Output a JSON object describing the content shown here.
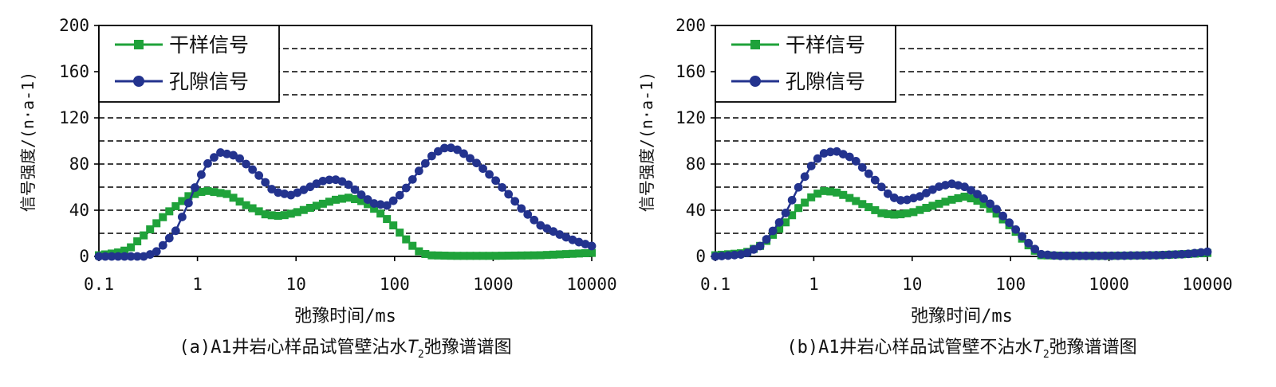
{
  "legend_labels": {
    "dry": "干样信号",
    "pore": "孔隙信号"
  },
  "colors": {
    "dry": "#1fa23a",
    "pore": "#23338e",
    "grid": "#000000"
  },
  "chart_data": [
    {
      "type": "scatter",
      "caption": "(a)A1井岩心样品试管壁沾水T2弛豫谱谱图",
      "caption_parts": {
        "prefix": "(a)A1井岩心样品试管壁沾水",
        "italic": "T",
        "sub": "2",
        "suffix": "弛豫谱谱图"
      },
      "xlabel": "弛豫时间/ms",
      "ylabel": "信号强度/(n·a-1)",
      "xscale": "log",
      "xlim": [
        0.1,
        10000
      ],
      "ylim": [
        0,
        200
      ],
      "xticks": [
        "0.1",
        "1",
        "10",
        "100",
        "1000",
        "10000"
      ],
      "yticks": [
        "0",
        "40",
        "80",
        "120",
        "160",
        "200"
      ],
      "grid": "horizontal dashed every 20",
      "legend_position": "top-left",
      "series": [
        {
          "name": "干样信号",
          "marker": "square",
          "anchors": [
            [
              0.1,
              1
            ],
            [
              0.15,
              3
            ],
            [
              0.2,
              6
            ],
            [
              0.3,
              20
            ],
            [
              0.5,
              38
            ],
            [
              0.8,
              52
            ],
            [
              1.2,
              57
            ],
            [
              2,
              54
            ],
            [
              3,
              45
            ],
            [
              5,
              36
            ],
            [
              7,
              35
            ],
            [
              10,
              38
            ],
            [
              15,
              43
            ],
            [
              25,
              49
            ],
            [
              35,
              51
            ],
            [
              50,
              47
            ],
            [
              70,
              38
            ],
            [
              90,
              30
            ],
            [
              120,
              18
            ],
            [
              170,
              5
            ],
            [
              220,
              1
            ],
            [
              400,
              0.5
            ],
            [
              1000,
              0.5
            ],
            [
              3000,
              1
            ],
            [
              10000,
              3
            ]
          ]
        },
        {
          "name": "孔隙信号",
          "marker": "circle",
          "anchors": [
            [
              0.1,
              0
            ],
            [
              0.2,
              0
            ],
            [
              0.3,
              0
            ],
            [
              0.4,
              5
            ],
            [
              0.6,
              22
            ],
            [
              0.8,
              45
            ],
            [
              1,
              65
            ],
            [
              1.3,
              82
            ],
            [
              1.7,
              90
            ],
            [
              2.5,
              87
            ],
            [
              4,
              72
            ],
            [
              6,
              56
            ],
            [
              9,
              53
            ],
            [
              13,
              59
            ],
            [
              18,
              65
            ],
            [
              24,
              67
            ],
            [
              32,
              64
            ],
            [
              45,
              54
            ],
            [
              60,
              46
            ],
            [
              85,
              44
            ],
            [
              120,
              55
            ],
            [
              180,
              75
            ],
            [
              250,
              89
            ],
            [
              340,
              95
            ],
            [
              450,
              92
            ],
            [
              700,
              80
            ],
            [
              1000,
              68
            ],
            [
              1500,
              52
            ],
            [
              2000,
              40
            ],
            [
              3000,
              27
            ],
            [
              5000,
              18
            ],
            [
              7000,
              13
            ],
            [
              10000,
              9
            ]
          ]
        }
      ]
    },
    {
      "type": "scatter",
      "caption": "(b)A1井岩心样品试管壁不沾水T2弛豫谱谱图",
      "caption_parts": {
        "prefix": "(b)A1井岩心样品试管壁不沾水",
        "italic": "T",
        "sub": "2",
        "suffix": "弛豫谱谱图"
      },
      "xlabel": "弛豫时间/ms",
      "ylabel": "信号强度/(n·a-1)",
      "xscale": "log",
      "xlim": [
        0.1,
        10000
      ],
      "ylim": [
        0,
        200
      ],
      "xticks": [
        "0.1",
        "1",
        "10",
        "100",
        "1000",
        "10000"
      ],
      "yticks": [
        "0",
        "40",
        "80",
        "120",
        "160",
        "200"
      ],
      "grid": "horizontal dashed every 20",
      "legend_position": "top-left",
      "series": [
        {
          "name": "干样信号",
          "marker": "square",
          "anchors": [
            [
              0.1,
              1
            ],
            [
              0.2,
              3
            ],
            [
              0.3,
              10
            ],
            [
              0.5,
              28
            ],
            [
              0.7,
              42
            ],
            [
              1,
              53
            ],
            [
              1.3,
              57
            ],
            [
              1.8,
              55
            ],
            [
              3,
              46
            ],
            [
              5,
              37
            ],
            [
              7,
              36
            ],
            [
              10,
              38
            ],
            [
              15,
              43
            ],
            [
              25,
              49
            ],
            [
              35,
              52
            ],
            [
              50,
              47
            ],
            [
              70,
              38
            ],
            [
              100,
              26
            ],
            [
              150,
              10
            ],
            [
              200,
              1
            ],
            [
              400,
              0.5
            ],
            [
              1000,
              0.5
            ],
            [
              3000,
              1
            ],
            [
              6000,
              2
            ],
            [
              10000,
              3
            ]
          ]
        },
        {
          "name": "孔隙信号",
          "marker": "circle",
          "anchors": [
            [
              0.1,
              0
            ],
            [
              0.15,
              1
            ],
            [
              0.2,
              2
            ],
            [
              0.3,
              10
            ],
            [
              0.5,
              35
            ],
            [
              0.7,
              60
            ],
            [
              1,
              82
            ],
            [
              1.3,
              90
            ],
            [
              1.7,
              91
            ],
            [
              2.5,
              85
            ],
            [
              4,
              68
            ],
            [
              6,
              52
            ],
            [
              8,
              48
            ],
            [
              12,
              52
            ],
            [
              18,
              60
            ],
            [
              25,
              63
            ],
            [
              35,
              60
            ],
            [
              50,
              52
            ],
            [
              70,
              42
            ],
            [
              100,
              28
            ],
            [
              150,
              12
            ],
            [
              200,
              2
            ],
            [
              300,
              0.5
            ],
            [
              1000,
              0.5
            ],
            [
              3000,
              1
            ],
            [
              6000,
              2
            ],
            [
              10000,
              4
            ]
          ]
        }
      ]
    }
  ]
}
